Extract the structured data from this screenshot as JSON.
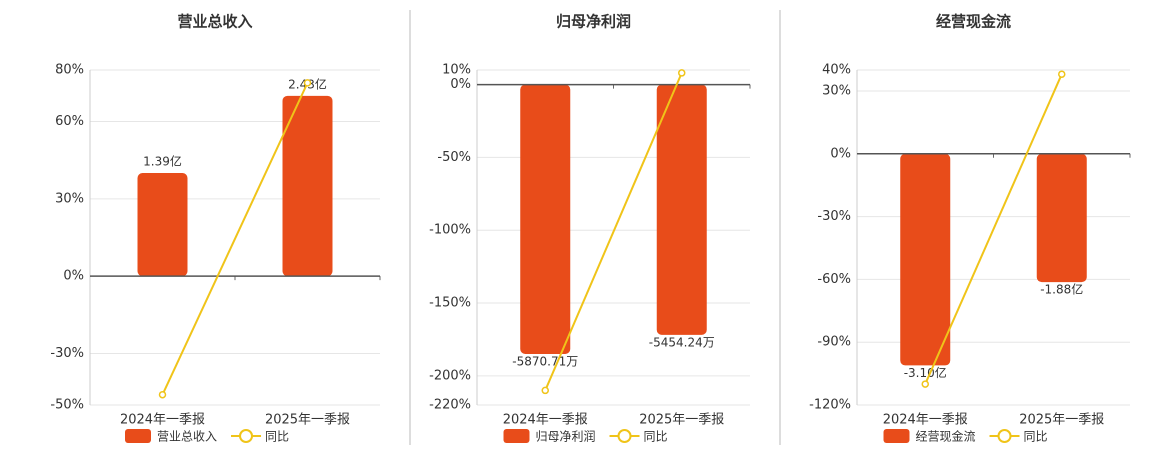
{
  "chart_data": [
    {
      "type": "bar-line",
      "title": "营业总收入",
      "categories": [
        "2024年一季报",
        "2025年一季报"
      ],
      "ylim": [
        -50,
        80
      ],
      "yticks": [
        {
          "value": 80,
          "label": "80%"
        },
        {
          "value": 60,
          "label": "60%"
        },
        {
          "value": 30,
          "label": "30%"
        },
        {
          "value": 0,
          "label": "0%"
        },
        {
          "value": -30,
          "label": "-30%"
        },
        {
          "value": -50,
          "label": "-50%"
        }
      ],
      "y2lim": [
        -1.736,
        2.778
      ],
      "grid": true,
      "series": [
        {
          "name": "营业总收入",
          "type": "bar",
          "axis": "y2",
          "color": "#e84c1a",
          "values": [
            1.39,
            2.43
          ],
          "value_labels": [
            "1.39亿",
            "2.43亿"
          ]
        },
        {
          "name": "同比",
          "type": "line",
          "color": "#f0c419",
          "values": [
            -46,
            75
          ]
        }
      ]
    },
    {
      "type": "bar-line",
      "title": "归母净利润",
      "categories": [
        "2024年一季报",
        "2025年一季报"
      ],
      "ylim": [
        -220,
        10
      ],
      "yticks": [
        {
          "value": 10,
          "label": "10%"
        },
        {
          "value": 0,
          "label": "0%"
        },
        {
          "value": -50,
          "label": "-50%"
        },
        {
          "value": -100,
          "label": "-100%"
        },
        {
          "value": -150,
          "label": "-150%"
        },
        {
          "value": -200,
          "label": "-200%"
        },
        {
          "value": -220,
          "label": "-220%"
        }
      ],
      "y2lim": [
        -6981.6,
        317.3
      ],
      "grid": true,
      "series": [
        {
          "name": "归母净利润",
          "type": "bar",
          "axis": "y2",
          "color": "#e84c1a",
          "values": [
            -5870.71,
            -5454.24
          ],
          "value_labels": [
            "-5870.71万",
            "-5454.24万"
          ]
        },
        {
          "name": "同比",
          "type": "line",
          "color": "#f0c419",
          "values": [
            -210,
            8
          ]
        }
      ]
    },
    {
      "type": "bar-line",
      "title": "经营现金流",
      "categories": [
        "2024年一季报",
        "2025年一季报"
      ],
      "ylim": [
        -120,
        40
      ],
      "yticks": [
        {
          "value": 40,
          "label": "40%"
        },
        {
          "value": 30,
          "label": "30%"
        },
        {
          "value": 0,
          "label": "0%"
        },
        {
          "value": -30,
          "label": "-30%"
        },
        {
          "value": -60,
          "label": "-60%"
        },
        {
          "value": -90,
          "label": "-90%"
        },
        {
          "value": -120,
          "label": "-120%"
        }
      ],
      "y2lim": [
        -3.68,
        1.227
      ],
      "grid": true,
      "series": [
        {
          "name": "经营现金流",
          "type": "bar",
          "axis": "y2",
          "color": "#e84c1a",
          "values": [
            -3.1,
            -1.88
          ],
          "value_labels": [
            "-3.10亿",
            "-1.88亿"
          ]
        },
        {
          "name": "同比",
          "type": "line",
          "color": "#f0c419",
          "values": [
            -110,
            38
          ]
        }
      ]
    }
  ]
}
